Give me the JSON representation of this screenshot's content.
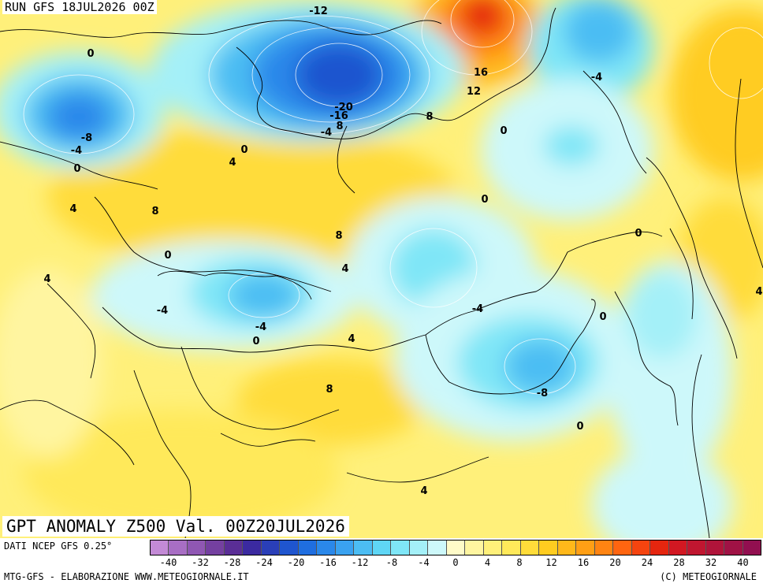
{
  "run_label": "RUN GFS 18JUL2026 00Z",
  "title": "GPT ANOMALY Z500 Val. 00Z20JUL2026",
  "data_source": "DATI NCEP GFS 0.25°",
  "credit": "MTG-GFS - ELABORAZIONE WWW.METEOGIORNALE.IT",
  "copyright": "(C) METEOGIORNALE",
  "legend": {
    "colors": [
      "#c38ad6",
      "#a86ec4",
      "#8f57b3",
      "#7440a0",
      "#5a2e96",
      "#3b2aa0",
      "#2a3fb8",
      "#1f55cf",
      "#1f6ee0",
      "#2a88ea",
      "#3aa2f0",
      "#4cbdf3",
      "#5fd6f5",
      "#7fe6f7",
      "#a4f0f8",
      "#cdf8fa",
      "#fffbc8",
      "#fff5a0",
      "#fff07a",
      "#ffe95a",
      "#ffdc3a",
      "#ffcc20",
      "#ffb81a",
      "#ff9f15",
      "#ff8412",
      "#ff6510",
      "#f5440f",
      "#e5260f",
      "#d21822",
      "#c01630",
      "#b0143a",
      "#a01245",
      "#920f50"
    ],
    "tick_labels": [
      "-40",
      "-32",
      "-28",
      "-24",
      "-20",
      "-16",
      "-12",
      "-8",
      "-4",
      "0",
      "4",
      "8",
      "12",
      "16",
      "20",
      "24",
      "28",
      "32",
      "40"
    ]
  },
  "contour_labels": [
    {
      "text": "-12",
      "lon": 404,
      "lat": 14
    },
    {
      "text": "0",
      "lon": 115,
      "lat": 68
    },
    {
      "text": "16",
      "lon": 610,
      "lat": 92
    },
    {
      "text": "12",
      "lon": 601,
      "lat": 116
    },
    {
      "text": "-4",
      "lon": 757,
      "lat": 98
    },
    {
      "text": "-20",
      "lon": 436,
      "lat": 136
    },
    {
      "text": "-16",
      "lon": 430,
      "lat": 147
    },
    {
      "text": "8",
      "lon": 431,
      "lat": 160
    },
    {
      "text": "-4",
      "lon": 414,
      "lat": 168
    },
    {
      "text": "8",
      "lon": 545,
      "lat": 148
    },
    {
      "text": "0",
      "lon": 639,
      "lat": 166
    },
    {
      "text": "-8",
      "lon": 110,
      "lat": 175
    },
    {
      "text": "-4",
      "lon": 97,
      "lat": 191
    },
    {
      "text": "0",
      "lon": 310,
      "lat": 190
    },
    {
      "text": "4",
      "lon": 295,
      "lat": 206
    },
    {
      "text": "0",
      "lon": 98,
      "lat": 214
    },
    {
      "text": "0",
      "lon": 615,
      "lat": 253
    },
    {
      "text": "4",
      "lon": 93,
      "lat": 265
    },
    {
      "text": "8",
      "lon": 197,
      "lat": 268
    },
    {
      "text": "0",
      "lon": 810,
      "lat": 296
    },
    {
      "text": "8",
      "lon": 430,
      "lat": 299
    },
    {
      "text": "0",
      "lon": 213,
      "lat": 324
    },
    {
      "text": "4",
      "lon": 438,
      "lat": 341
    },
    {
      "text": "4",
      "lon": 60,
      "lat": 354
    },
    {
      "text": "4",
      "lon": 963,
      "lat": 370
    },
    {
      "text": "-4",
      "lon": 206,
      "lat": 394
    },
    {
      "text": "-4",
      "lon": 606,
      "lat": 392
    },
    {
      "text": "0",
      "lon": 765,
      "lat": 402
    },
    {
      "text": "-4",
      "lon": 331,
      "lat": 415
    },
    {
      "text": "0",
      "lon": 325,
      "lat": 433
    },
    {
      "text": "4",
      "lon": 446,
      "lat": 430
    },
    {
      "text": "8",
      "lon": 418,
      "lat": 494
    },
    {
      "text": "-8",
      "lon": 688,
      "lat": 499
    },
    {
      "text": "0",
      "lon": 736,
      "lat": 541
    },
    {
      "text": "4",
      "lon": 538,
      "lat": 623
    }
  ]
}
